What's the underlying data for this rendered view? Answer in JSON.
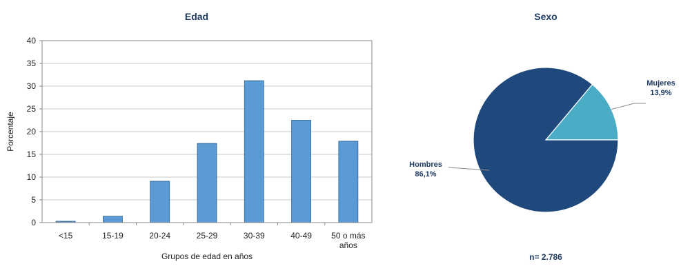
{
  "chart_data": [
    {
      "type": "bar",
      "title": "Edad",
      "xlabel": "Grupos de edad en años",
      "ylabel": "Porcentaje",
      "categories": [
        [
          "<15"
        ],
        [
          "15-19"
        ],
        [
          "20-24"
        ],
        [
          "25-29"
        ],
        [
          "30-39"
        ],
        [
          "40-49"
        ],
        [
          "50 o más",
          "años"
        ]
      ],
      "values": [
        0.3,
        1.4,
        9.1,
        17.4,
        31.2,
        22.5,
        17.9
      ],
      "ylim": [
        0,
        40
      ],
      "yticks": [
        0,
        5,
        10,
        15,
        20,
        25,
        30,
        35,
        40
      ],
      "grid": true,
      "colors": {
        "bar": "#5b9bd5",
        "bar_stroke": "#2e5f8a",
        "grid": "#c8c8c8",
        "axis": "#888888"
      }
    },
    {
      "type": "pie",
      "title": "Sexo",
      "slices": [
        {
          "label": "Mujeres",
          "value_label": "13,9%",
          "value": 13.9,
          "color": "#4bacc6"
        },
        {
          "label": "Hombres",
          "value_label": "86,1%",
          "value": 86.1,
          "color": "#1f497d"
        }
      ],
      "footnote": "n= 2.786"
    }
  ]
}
